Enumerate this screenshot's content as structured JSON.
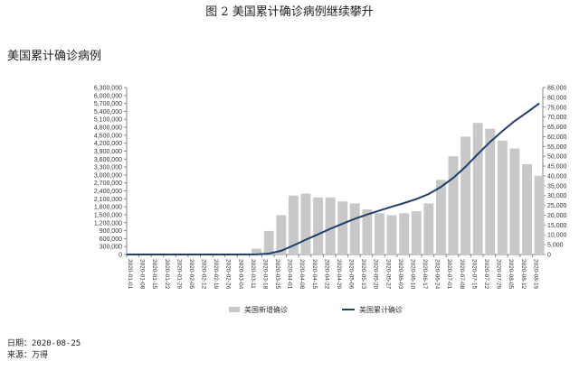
{
  "caption": "图 2  美国累计确诊病例继续攀升",
  "footer": {
    "date": "日期：2020-08-25",
    "source": "来源：万得"
  },
  "chart_data": {
    "type": "bar+line",
    "title": "美国累计确诊病例",
    "x_tick_labels": [
      "2020-01-01",
      "2020-01-08",
      "2020-01-15",
      "2020-01-22",
      "2020-01-29",
      "2020-02-05",
      "2020-02-12",
      "2020-02-19",
      "2020-02-26",
      "2020-03-04",
      "2020-03-11",
      "2020-03-18",
      "2020-03-25",
      "2020-04-01",
      "2020-04-08",
      "2020-04-15",
      "2020-04-22",
      "2020-04-29",
      "2020-05-06",
      "2020-05-13",
      "2020-05-20",
      "2020-05-27",
      "2020-06-03",
      "2020-06-10",
      "2020-06-17",
      "2020-06-24",
      "2020-07-01",
      "2020-07-08",
      "2020-07-15",
      "2020-07-22",
      "2020-07-29",
      "2020-08-05",
      "2020-08-12",
      "2020-08-19"
    ],
    "left_axis": {
      "ylim": [
        0,
        6300000
      ],
      "ticks": [
        "0",
        "300,000",
        "600,000",
        "900,000",
        "1,200,000",
        "1,500,000",
        "1,800,000",
        "2,100,000",
        "2,400,000",
        "2,700,000",
        "3,000,000",
        "3,300,000",
        "3,600,000",
        "3,900,000",
        "4,200,000",
        "4,500,000",
        "4,800,000",
        "5,100,000",
        "5,400,000",
        "5,700,000",
        "6,000,000",
        "6,300,000"
      ]
    },
    "right_axis": {
      "ylim": [
        0,
        85000
      ],
      "ticks": [
        "0",
        "5,000",
        "10,000",
        "15,000",
        "20,000",
        "25,000",
        "30,000",
        "35,000",
        "40,000",
        "45,000",
        "50,000",
        "55,000",
        "60,000",
        "65,000",
        "70,000",
        "75,000",
        "80,000",
        "85,000"
      ]
    },
    "grid": false,
    "legend_position": "bottom",
    "series": [
      {
        "name": "美国新增确诊",
        "type": "bar",
        "axis": "right",
        "color": "#c8c8c8",
        "x": [
          "2020-03-01",
          "2020-03-08",
          "2020-03-15",
          "2020-03-22",
          "2020-03-29",
          "2020-04-05",
          "2020-04-12",
          "2020-04-19",
          "2020-04-26",
          "2020-05-03",
          "2020-05-10",
          "2020-05-17",
          "2020-05-24",
          "2020-05-31",
          "2020-06-07",
          "2020-06-14",
          "2020-06-21",
          "2020-06-28",
          "2020-07-05",
          "2020-07-12",
          "2020-07-19",
          "2020-07-26",
          "2020-08-02",
          "2020-08-09",
          "2020-08-16",
          "2020-08-23"
        ],
        "values": [
          300,
          600,
          3000,
          12000,
          20000,
          30000,
          31000,
          29000,
          29000,
          27000,
          26000,
          23000,
          21000,
          20000,
          21000,
          22000,
          26000,
          38000,
          50000,
          60000,
          67000,
          64000,
          58000,
          54000,
          46000,
          40000
        ]
      },
      {
        "name": "美国累计确诊",
        "type": "line",
        "axis": "left",
        "color": "#1f3d6e",
        "x": [
          "2020-01-01",
          "2020-03-01",
          "2020-03-15",
          "2020-03-22",
          "2020-03-29",
          "2020-04-05",
          "2020-04-12",
          "2020-04-19",
          "2020-04-26",
          "2020-05-03",
          "2020-05-10",
          "2020-05-17",
          "2020-05-24",
          "2020-05-31",
          "2020-06-07",
          "2020-06-14",
          "2020-06-21",
          "2020-06-28",
          "2020-07-05",
          "2020-07-12",
          "2020-07-19",
          "2020-07-26",
          "2020-08-02",
          "2020-08-09",
          "2020-08-16",
          "2020-08-23"
        ],
        "values": [
          0,
          0,
          3000,
          34000,
          140000,
          340000,
          560000,
          760000,
          970000,
          1160000,
          1350000,
          1510000,
          1660000,
          1800000,
          1940000,
          2090000,
          2280000,
          2550000,
          2890000,
          3310000,
          3790000,
          4250000,
          4660000,
          5040000,
          5360000,
          5700000
        ]
      }
    ]
  }
}
